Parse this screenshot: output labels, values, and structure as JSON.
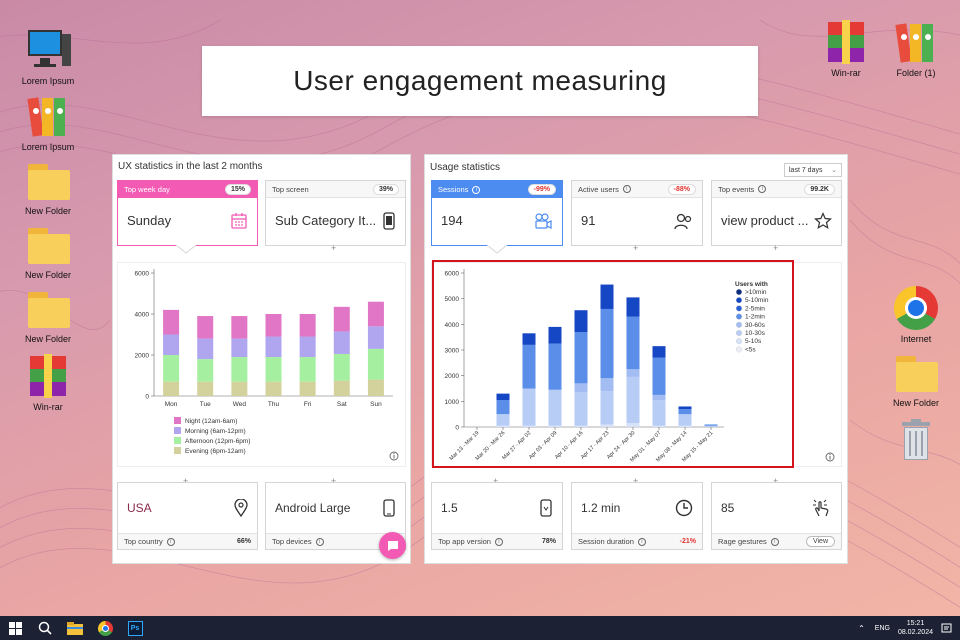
{
  "title": "User engagement measuring",
  "desktop_icons": {
    "left": [
      {
        "label": "Lorem Ipsum",
        "icon": "computer-icon"
      },
      {
        "label": "Lorem Ipsum",
        "icon": "binders-icon"
      },
      {
        "label": "New Folder",
        "icon": "folder-icon"
      },
      {
        "label": "New Folder",
        "icon": "folder-icon"
      },
      {
        "label": "New Folder",
        "icon": "folder-icon"
      },
      {
        "label": "Win-rar",
        "icon": "winrar-icon"
      }
    ],
    "right": [
      {
        "label": "Win-rar",
        "icon": "winrar-icon"
      },
      {
        "label": "Folder (1)",
        "icon": "binders-icon"
      },
      {
        "label": "Internet",
        "icon": "chrome-icon"
      },
      {
        "label": "New Folder",
        "icon": "folder-icon"
      },
      {
        "label": "",
        "icon": "trash-icon"
      }
    ]
  },
  "ux_panel": {
    "title": "UX statistics in the last 2 months",
    "top_week_day": {
      "label": "Top week day",
      "badge": "15%",
      "value": "Sunday"
    },
    "top_screen": {
      "label": "Top screen",
      "badge": "39%",
      "value": "Sub Category It..."
    },
    "top_country": {
      "label": "Top country",
      "badge": "66%",
      "value": "USA"
    },
    "top_devices": {
      "label": "Top devices",
      "value": "Android Large"
    }
  },
  "usage_panel": {
    "title": "Usage statistics",
    "period": "last 7 days",
    "sessions": {
      "label": "Sessions",
      "badge": "-99%",
      "value": "194"
    },
    "active_users": {
      "label": "Active users",
      "badge": "-88%",
      "value": "91"
    },
    "top_events": {
      "label": "Top events",
      "badge": "99.2K",
      "value": "view product ..."
    },
    "top_app_version": {
      "label": "Top app version",
      "badge": "78%",
      "value": "1.5"
    },
    "session_duration": {
      "label": "Session duration",
      "badge": "-21%",
      "value": "1.2 min"
    },
    "rage_gestures": {
      "label": "Rage gestures",
      "button": "View",
      "value": "85"
    }
  },
  "chart_data": [
    {
      "type": "bar",
      "stacked": true,
      "categories": [
        "Mon",
        "Tue",
        "Wed",
        "Thu",
        "Fri",
        "Sat",
        "Sun"
      ],
      "yticks": [
        "0",
        "2000",
        "4000",
        "6000"
      ],
      "ylim": [
        0,
        6000
      ],
      "series": [
        {
          "name": "Evening (6pm-12am)",
          "color": "#d4d29c",
          "values": [
            700,
            700,
            700,
            700,
            700,
            750,
            800
          ]
        },
        {
          "name": "Afternoon (12pm-6pm)",
          "color": "#a4f0a0",
          "values": [
            1300,
            1100,
            1200,
            1200,
            1200,
            1300,
            1500
          ]
        },
        {
          "name": "Morning (6am-12pm)",
          "color": "#b0a6f0",
          "values": [
            1000,
            1000,
            900,
            1000,
            1000,
            1100,
            1100
          ]
        },
        {
          "name": "Night (12am-6am)",
          "color": "#e276c6",
          "values": [
            1200,
            1100,
            1100,
            1100,
            1100,
            1200,
            1200
          ]
        }
      ]
    },
    {
      "type": "bar",
      "stacked": true,
      "categories": [
        "Mar 13 - Mar 19",
        "Mar 20 - Mar 26",
        "Mar 27 - Apr 02",
        "Apr 03 - Apr 09",
        "Apr 10 - Apr 16",
        "Apr 17 - Apr 23",
        "Apr 24 - Apr 30",
        "May 01 - May 07",
        "May 08 - May 14",
        "May 15 - May 21"
      ],
      "yticks": [
        "0",
        "1000",
        "2000",
        "3000",
        "4000",
        "5000",
        "6000"
      ],
      "ylim": [
        0,
        6000
      ],
      "legend_title": "Users with",
      "series": [
        {
          "name": "<5s",
          "color": "#eceef6",
          "values": [
            0,
            0,
            0,
            0,
            0,
            0,
            0,
            0,
            0,
            0
          ]
        },
        {
          "name": "5-10s",
          "color": "#d6e2f8",
          "values": [
            0,
            50,
            50,
            50,
            50,
            100,
            150,
            50,
            50,
            0
          ]
        },
        {
          "name": "10-30s",
          "color": "#b8cdf5",
          "values": [
            0,
            450,
            1450,
            1400,
            1300,
            1300,
            1800,
            1000,
            450,
            50
          ]
        },
        {
          "name": "30-60s",
          "color": "#a3bdf3",
          "values": [
            0,
            0,
            0,
            0,
            350,
            500,
            300,
            200,
            0,
            0
          ]
        },
        {
          "name": "1-2min",
          "color": "#5a8ee8",
          "values": [
            0,
            550,
            1700,
            1800,
            2000,
            2700,
            2050,
            1450,
            200,
            50
          ]
        },
        {
          "name": "2-5min",
          "color": "#2a5fd6",
          "values": [
            0,
            0,
            0,
            0,
            0,
            0,
            0,
            0,
            0,
            0
          ]
        },
        {
          "name": "5-10min",
          "color": "#1546c4",
          "values": [
            0,
            250,
            450,
            650,
            850,
            950,
            750,
            450,
            100,
            0
          ]
        },
        {
          "name": ">10min",
          "color": "#0b2b7c",
          "values": [
            0,
            0,
            0,
            0,
            0,
            0,
            0,
            0,
            0,
            0
          ]
        }
      ]
    }
  ],
  "taskbar": {
    "lang": "ENG",
    "time": "15:21",
    "date": "08.02.2024"
  }
}
